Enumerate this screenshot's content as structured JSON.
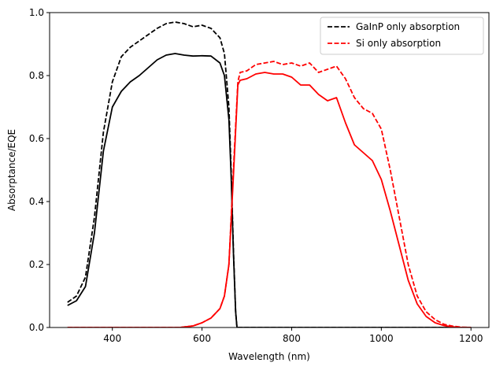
{
  "chart_data": {
    "type": "line",
    "title": "",
    "xlabel": "Wavelength (nm)",
    "ylabel": "Absorptance/EQE",
    "xlim": [
      260,
      1240
    ],
    "ylim": [
      0,
      1.0
    ],
    "xticks": [
      400,
      600,
      800,
      1000,
      1200
    ],
    "yticks": [
      0.0,
      0.2,
      0.4,
      0.6,
      0.8,
      1.0
    ],
    "xtick_labels": [
      "400",
      "600",
      "800",
      "1000",
      "1200"
    ],
    "ytick_labels": [
      "0.0",
      "0.2",
      "0.4",
      "0.6",
      "0.8",
      "1.0"
    ],
    "legend_position": "top-right",
    "grid": false,
    "series": [
      {
        "name": "GaInP only absorption",
        "color": "#000000",
        "dash": "dashed",
        "x": [
          300,
          320,
          340,
          360,
          380,
          400,
          420,
          440,
          460,
          480,
          500,
          520,
          540,
          560,
          580,
          600,
          620,
          640,
          650,
          660,
          665,
          670,
          675,
          678,
          682,
          700,
          800,
          900,
          1000,
          1100,
          1200
        ],
        "y": [
          0.08,
          0.1,
          0.16,
          0.35,
          0.62,
          0.78,
          0.86,
          0.89,
          0.91,
          0.93,
          0.95,
          0.965,
          0.97,
          0.965,
          0.955,
          0.96,
          0.95,
          0.92,
          0.87,
          0.7,
          0.5,
          0.25,
          0.05,
          0.0,
          0.0,
          0.0,
          0.0,
          0.0,
          0.0,
          0.0,
          0.0
        ]
      },
      {
        "name": "Si only absorption",
        "color": "#ff0000",
        "dash": "dashed",
        "x": [
          300,
          550,
          580,
          600,
          620,
          640,
          650,
          660,
          670,
          680,
          685,
          700,
          720,
          740,
          760,
          780,
          800,
          820,
          840,
          860,
          880,
          900,
          920,
          940,
          960,
          980,
          1000,
          1020,
          1040,
          1060,
          1080,
          1100,
          1120,
          1140,
          1160,
          1180,
          1200
        ],
        "y": [
          0.0,
          0.0,
          0.005,
          0.015,
          0.03,
          0.06,
          0.1,
          0.2,
          0.5,
          0.78,
          0.81,
          0.815,
          0.835,
          0.84,
          0.845,
          0.835,
          0.84,
          0.83,
          0.84,
          0.81,
          0.82,
          0.83,
          0.79,
          0.73,
          0.695,
          0.68,
          0.63,
          0.5,
          0.35,
          0.2,
          0.1,
          0.05,
          0.025,
          0.01,
          0.004,
          0.001,
          0.0
        ]
      },
      {
        "color": "#000000",
        "dash": "solid",
        "x": [
          300,
          320,
          340,
          360,
          380,
          400,
          420,
          440,
          460,
          480,
          500,
          520,
          540,
          560,
          580,
          600,
          620,
          640,
          650,
          660,
          665,
          670,
          675,
          678,
          682,
          700,
          800,
          900,
          1000,
          1100,
          1200
        ],
        "y": [
          0.07,
          0.085,
          0.13,
          0.3,
          0.56,
          0.7,
          0.75,
          0.78,
          0.8,
          0.825,
          0.85,
          0.865,
          0.87,
          0.865,
          0.862,
          0.863,
          0.862,
          0.84,
          0.8,
          0.66,
          0.48,
          0.24,
          0.05,
          0.0,
          0.0,
          0.0,
          0.0,
          0.0,
          0.0,
          0.0,
          0.0
        ]
      },
      {
        "color": "#ff0000",
        "dash": "solid",
        "x": [
          300,
          550,
          580,
          600,
          620,
          640,
          650,
          660,
          670,
          680,
          685,
          700,
          720,
          740,
          760,
          780,
          800,
          820,
          840,
          860,
          880,
          900,
          920,
          940,
          960,
          980,
          1000,
          1020,
          1040,
          1060,
          1080,
          1100,
          1120,
          1140,
          1160,
          1180,
          1200
        ],
        "y": [
          0.0,
          0.0,
          0.005,
          0.015,
          0.03,
          0.06,
          0.1,
          0.2,
          0.48,
          0.77,
          0.785,
          0.79,
          0.805,
          0.81,
          0.805,
          0.805,
          0.795,
          0.77,
          0.77,
          0.74,
          0.72,
          0.73,
          0.65,
          0.58,
          0.555,
          0.53,
          0.47,
          0.37,
          0.26,
          0.15,
          0.075,
          0.035,
          0.015,
          0.006,
          0.002,
          0.0,
          0.0
        ]
      }
    ]
  }
}
